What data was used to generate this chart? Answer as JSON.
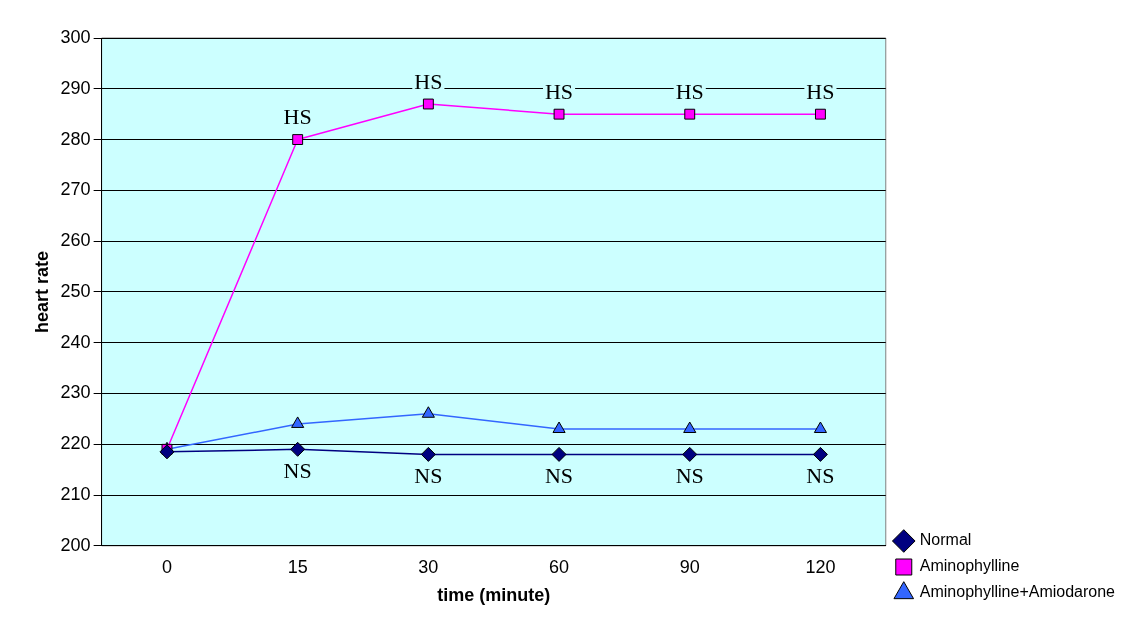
{
  "chart_data": {
    "type": "line",
    "xlabel": "time (minute)",
    "ylabel": "heart rate",
    "categories": [
      "0",
      "15",
      "30",
      "60",
      "90",
      "120"
    ],
    "series": [
      {
        "name": "Normal",
        "color": "#000080",
        "marker": "diamond",
        "values": [
          218.5,
          219,
          218,
          218,
          218,
          218
        ]
      },
      {
        "name": "Aminophylline",
        "color": "#ff00ff",
        "marker": "square",
        "values": [
          219,
          280,
          287,
          285,
          285,
          285
        ]
      },
      {
        "name": "Aminophylline+Amiodarone",
        "color": "#3366ff",
        "marker": "triangle",
        "values": [
          219,
          224,
          226,
          223,
          223,
          223
        ]
      }
    ],
    "ylim": [
      200,
      300
    ],
    "yticks": [
      200,
      210,
      220,
      230,
      240,
      250,
      260,
      270,
      280,
      290,
      300
    ],
    "grid": "y",
    "legend": "bottom right",
    "annotations": [
      {
        "text": "HS",
        "x": "15",
        "y": 280
      },
      {
        "text": "HS",
        "x": "30",
        "y": 287
      },
      {
        "text": "HS",
        "x": "60",
        "y": 285
      },
      {
        "text": "HS",
        "x": "90",
        "y": 285
      },
      {
        "text": "HS",
        "x": "120",
        "y": 285
      },
      {
        "text": "NS",
        "x": "15",
        "y": 219
      },
      {
        "text": "NS",
        "x": "30",
        "y": 218
      },
      {
        "text": "NS",
        "x": "60",
        "y": 218
      },
      {
        "text": "NS",
        "x": "90",
        "y": 218
      },
      {
        "text": "NS",
        "x": "120",
        "y": 218
      }
    ]
  }
}
